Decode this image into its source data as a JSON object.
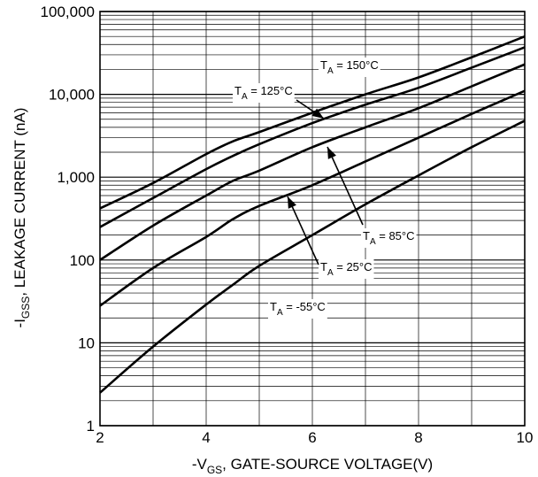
{
  "chart_data": {
    "type": "line",
    "xlabel": {
      "prefix": "-V",
      "sub": "GS",
      "suffix": ", GATE-SOURCE VOLTAGE(V)"
    },
    "ylabel": {
      "prefix": "-I",
      "sub": "GSS",
      "suffix": ", LEAKAGE CURRENT (nA)"
    },
    "xlim": [
      2,
      10
    ],
    "ylim": [
      1,
      100000
    ],
    "yscale": "log",
    "grid": true,
    "x_ticks": [
      "2",
      "4",
      "6",
      "8",
      "10"
    ],
    "y_ticks": [
      "1",
      "10",
      "100",
      "1,000",
      "10,000",
      "100,000"
    ],
    "series": [
      {
        "name": "T_A = 150°C",
        "label": {
          "main": "T",
          "sub": "A",
          "rest": " = 150°C"
        },
        "x": [
          2,
          3,
          4,
          4.5,
          5,
          6,
          7,
          8,
          9,
          10
        ],
        "y": [
          420,
          850,
          1900,
          2700,
          3500,
          6000,
          10000,
          16000,
          28000,
          50000
        ]
      },
      {
        "name": "T_A = 125°C",
        "label": {
          "main": "T",
          "sub": "A",
          "rest": " = 125°C"
        },
        "x": [
          2,
          3,
          4,
          4.5,
          5,
          6,
          7,
          8,
          9,
          10
        ],
        "y": [
          250,
          560,
          1250,
          1800,
          2500,
          4500,
          7500,
          12000,
          21000,
          37000
        ]
      },
      {
        "name": "T_A = 85°C",
        "label": {
          "main": "T",
          "sub": "A",
          "rest": " = 85°C"
        },
        "x": [
          2,
          3,
          4,
          4.5,
          5,
          6,
          7,
          8,
          9,
          10
        ],
        "y": [
          100,
          260,
          600,
          900,
          1200,
          2300,
          4000,
          6800,
          12500,
          23000
        ]
      },
      {
        "name": "T_A = 25°C",
        "label": {
          "main": "T",
          "sub": "A",
          "rest": " = 25°C"
        },
        "x": [
          2,
          3,
          4,
          4.5,
          5,
          6,
          7,
          8,
          9,
          10
        ],
        "y": [
          28,
          80,
          190,
          310,
          450,
          800,
          1550,
          3000,
          5800,
          11000
        ]
      },
      {
        "name": "T_A = -55°C",
        "label": {
          "main": "T",
          "sub": "A",
          "rest": " = -55°C"
        },
        "x": [
          2,
          3,
          4,
          4.5,
          5,
          6,
          7,
          8,
          9,
          10
        ],
        "y": [
          2.5,
          9,
          29,
          50,
          85,
          200,
          470,
          1050,
          2300,
          4800
        ]
      }
    ]
  }
}
